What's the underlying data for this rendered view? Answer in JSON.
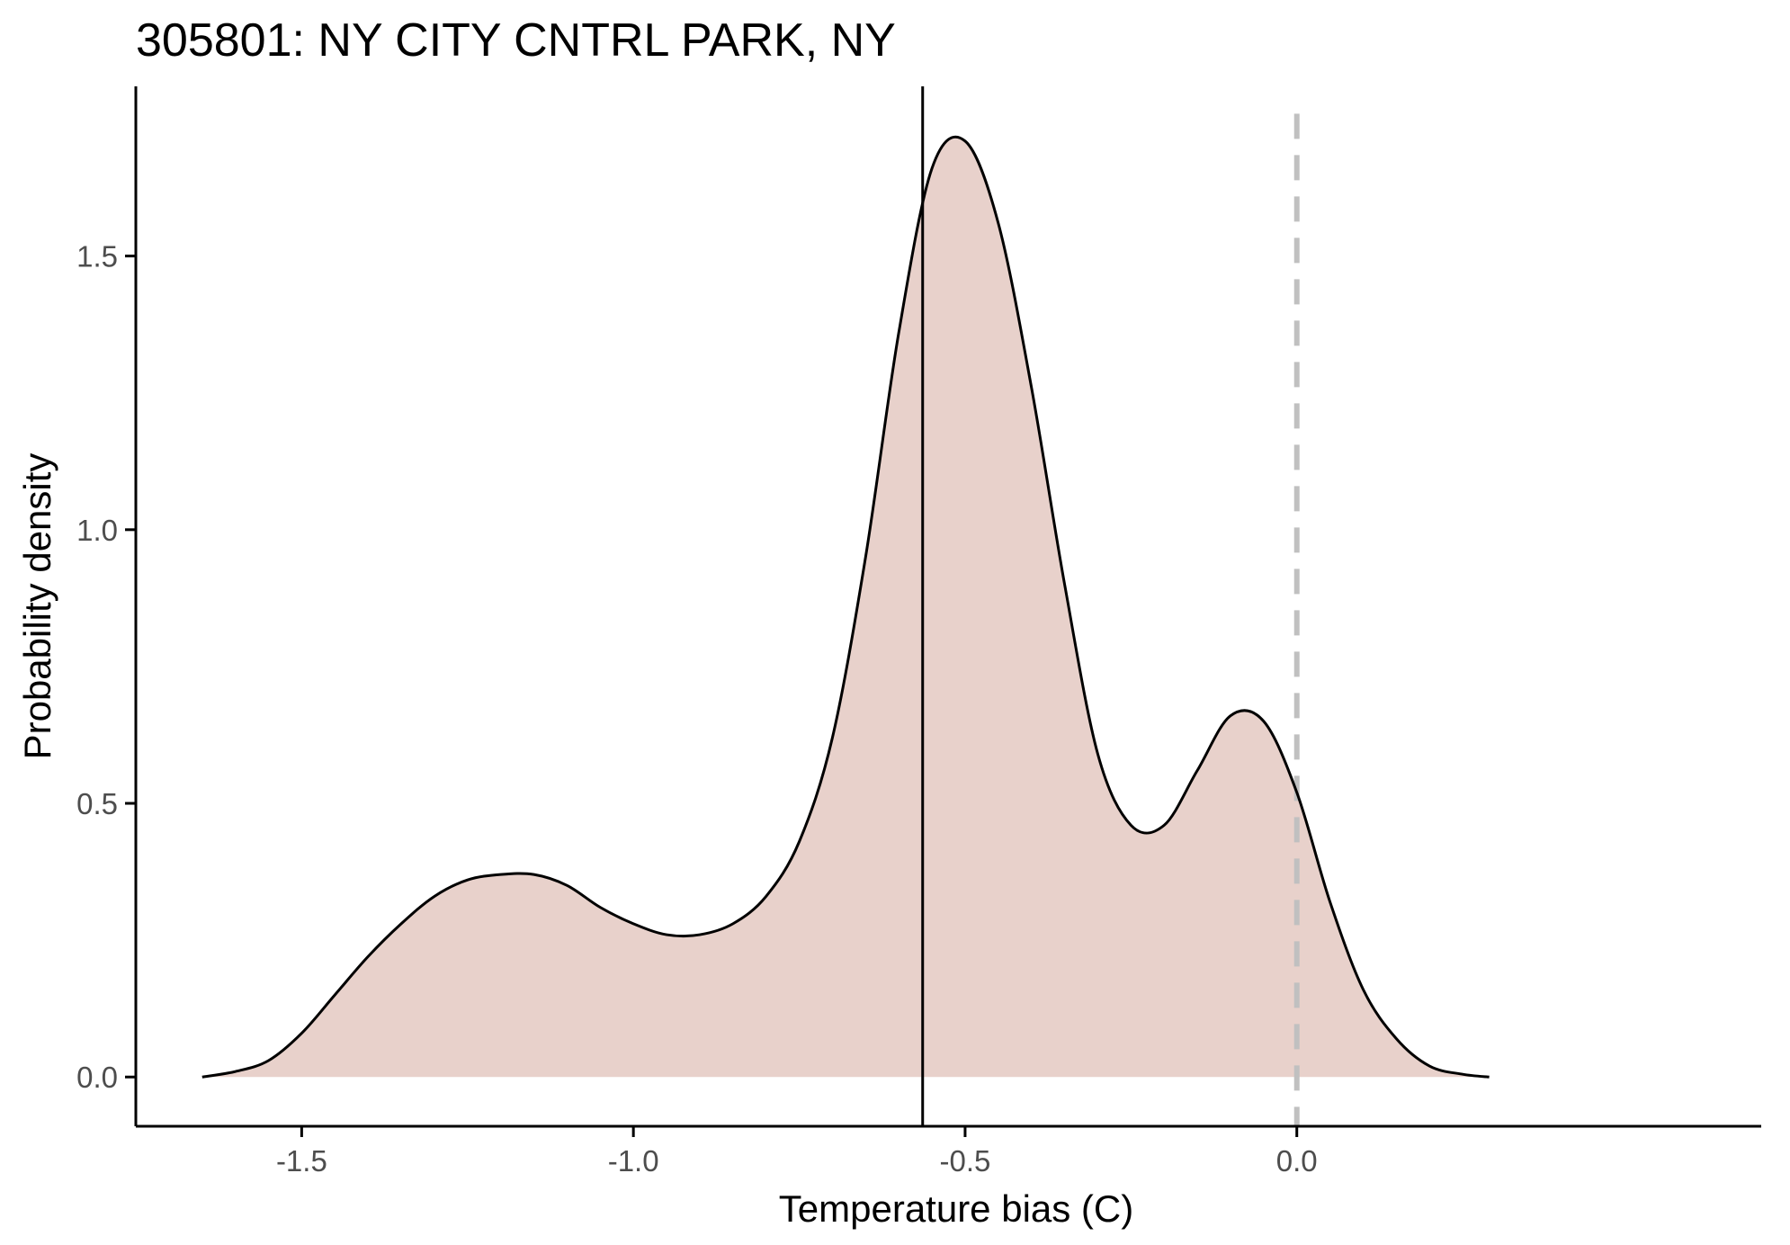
{
  "chart_data": {
    "type": "area",
    "title": "305801: NY CITY CNTRL PARK, NY",
    "xlabel": "Temperature bias (C)",
    "ylabel": "Probability density",
    "xlim": [
      -1.75,
      0.7
    ],
    "ylim": [
      -0.09,
      1.81
    ],
    "x_ticks": [
      -1.5,
      -1.0,
      -0.5,
      0.0
    ],
    "x_tick_labels": [
      "-1.5",
      "-1.0",
      "-0.5",
      "0.0"
    ],
    "y_ticks": [
      0.0,
      0.5,
      1.0,
      1.5
    ],
    "y_tick_labels": [
      "0.0",
      "0.5",
      "1.0",
      "1.5"
    ],
    "grid": false,
    "legend": "none",
    "colors": {
      "fill": "#e8d1cb",
      "line": "#000000",
      "reference_line": "#c0c0c0",
      "axis": "#000000"
    },
    "series": [
      {
        "x": [
          -1.65,
          -1.6,
          -1.55,
          -1.5,
          -1.45,
          -1.4,
          -1.35,
          -1.3,
          -1.25,
          -1.2,
          -1.15,
          -1.1,
          -1.05,
          -1.0,
          -0.95,
          -0.9,
          -0.85,
          -0.8,
          -0.75,
          -0.7,
          -0.65,
          -0.6,
          -0.55,
          -0.5,
          -0.45,
          -0.4,
          -0.35,
          -0.3,
          -0.25,
          -0.2,
          -0.15,
          -0.1,
          -0.05,
          0.0,
          0.05,
          0.1,
          0.15,
          0.2,
          0.25,
          0.29
        ],
        "y": [
          0.0,
          0.01,
          0.03,
          0.08,
          0.15,
          0.22,
          0.28,
          0.33,
          0.36,
          0.37,
          0.37,
          0.35,
          0.31,
          0.28,
          0.26,
          0.26,
          0.28,
          0.33,
          0.43,
          0.62,
          0.95,
          1.36,
          1.66,
          1.71,
          1.56,
          1.26,
          0.9,
          0.59,
          0.46,
          0.46,
          0.56,
          0.66,
          0.65,
          0.52,
          0.32,
          0.16,
          0.07,
          0.02,
          0.005,
          0.0
        ]
      }
    ],
    "vlines": [
      {
        "x": -0.564,
        "style": "solid"
      },
      {
        "x": 0.0,
        "style": "dashed"
      }
    ]
  }
}
